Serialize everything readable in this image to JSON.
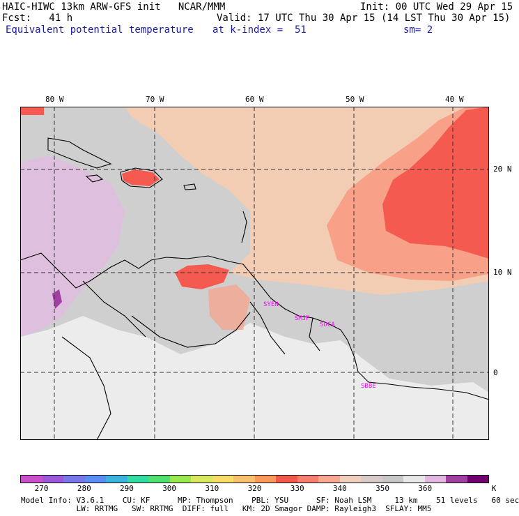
{
  "header": {
    "model_line": "HAIC-HIWC 13km ARW-GFS init   NCAR/MMM",
    "init_line": "Init: 00 UTC Wed 29 Apr 15",
    "fcst_line": "Fcst:   41 h",
    "valid_line": "Valid: 17 UTC Thu 30 Apr 15 (14 LST Thu 30 Apr 15)",
    "field_line": "Equivalent potential temperature",
    "level_line": "at k-index =  51",
    "smooth_line": "sm= 2"
  },
  "map": {
    "lon_labels": [
      "80 W",
      "70 W",
      "60 W",
      "50 W",
      "40 W"
    ],
    "lat_labels": [
      "20 N",
      "10 N",
      "0"
    ],
    "stations": [
      "SYEN",
      "SMJP",
      "SOCA",
      "SBBE"
    ],
    "colors": {
      "land_mask": "#c8c8c8",
      "hot": "#f45a50",
      "warm": "#f8a088",
      "peach": "#f2cdb4"
    }
  },
  "legend": {
    "labels": [
      "270",
      "280",
      "290",
      "300",
      "310",
      "320",
      "330",
      "340",
      "350",
      "360",
      "K"
    ],
    "colors": [
      "#c850c8",
      "#9a5ad8",
      "#7878e8",
      "#5a8ef0",
      "#3cb4dc",
      "#32dca0",
      "#50e070",
      "#98e850",
      "#d8e860",
      "#f8dc6c",
      "#f8c070",
      "#f89a5c",
      "#f05a4a",
      "#f48070",
      "#f8a890",
      "#f0d0bc",
      "#d8ccc8",
      "#c8c8c8",
      "#e8e8e8",
      "#e0b8e0",
      "#a040a0",
      "#700070"
    ]
  },
  "footer": {
    "line1": "Model Info: V3.6.1    CU: KF      MP: Thompson    PBL: YSU      SF: Noah LSM     13 km    51 levels   60 sec",
    "line2": "            LW: RRTMG   SW: RRTMG  DIFF: full   KM: 2D Smagor DAMP: Rayleigh3  SFLAY: MM5"
  }
}
